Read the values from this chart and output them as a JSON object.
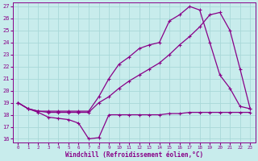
{
  "xlabel": "Windchill (Refroidissement éolien,°C)",
  "bg_color": "#c8ecec",
  "line_color": "#880088",
  "grid_color": "#a8d8d8",
  "xlim": [
    -0.5,
    23.5
  ],
  "ylim": [
    15.7,
    27.3
  ],
  "xticks": [
    0,
    1,
    2,
    3,
    4,
    5,
    6,
    7,
    8,
    9,
    10,
    11,
    12,
    13,
    14,
    15,
    16,
    17,
    18,
    19,
    20,
    21,
    22,
    23
  ],
  "yticks": [
    16,
    17,
    18,
    19,
    20,
    21,
    22,
    23,
    24,
    25,
    26,
    27
  ],
  "line1_x": [
    0,
    1,
    2,
    3,
    4,
    5,
    6,
    7,
    8,
    9,
    10,
    11,
    12,
    13,
    14,
    15,
    16,
    17,
    18,
    19,
    20,
    21,
    22,
    23
  ],
  "line1_y": [
    19.0,
    18.5,
    18.2,
    17.8,
    17.7,
    17.6,
    17.3,
    16.0,
    16.1,
    18.0,
    18.0,
    18.0,
    18.0,
    18.0,
    18.0,
    18.1,
    18.1,
    18.2,
    18.2,
    18.2,
    18.2,
    18.2,
    18.2,
    18.2
  ],
  "line2_x": [
    0,
    1,
    2,
    3,
    4,
    5,
    6,
    7,
    8,
    9,
    10,
    11,
    12,
    13,
    14,
    15,
    16,
    17,
    18,
    19,
    20,
    21,
    22,
    23
  ],
  "line2_y": [
    19.0,
    18.5,
    18.3,
    18.3,
    18.3,
    18.3,
    18.3,
    18.3,
    19.5,
    21.0,
    22.2,
    22.8,
    23.5,
    23.8,
    24.0,
    25.8,
    26.3,
    27.0,
    26.7,
    24.0,
    21.3,
    20.2,
    18.7,
    18.5
  ],
  "line3_x": [
    0,
    1,
    2,
    3,
    4,
    5,
    6,
    7,
    8,
    9,
    10,
    11,
    12,
    13,
    14,
    15,
    16,
    17,
    18,
    19,
    20,
    21,
    22,
    23
  ],
  "line3_y": [
    19.0,
    18.5,
    18.3,
    18.2,
    18.2,
    18.2,
    18.2,
    18.2,
    19.0,
    19.5,
    20.2,
    20.8,
    21.3,
    21.8,
    22.3,
    23.0,
    23.8,
    24.5,
    25.3,
    26.3,
    26.5,
    25.0,
    21.8,
    18.5
  ]
}
